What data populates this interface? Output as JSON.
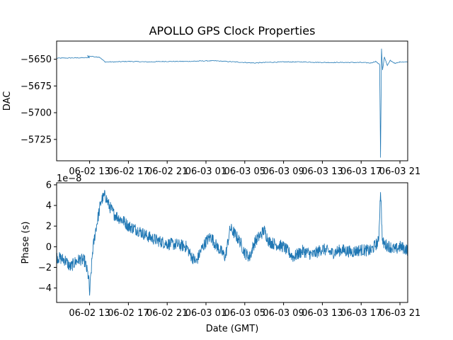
{
  "figure": {
    "title": "APOLLO GPS Clock Properties",
    "series_color": "#1f77b4",
    "axis_color": "#000000"
  },
  "chart_data": [
    {
      "type": "line",
      "title": "APOLLO GPS Clock Properties",
      "xlabel": "",
      "ylabel": "DAC",
      "x_ticks": [
        "06-02 13",
        "06-02 17",
        "06-02 21",
        "06-03 01",
        "06-03 05",
        "06-03 09",
        "06-03 13",
        "06-03 17",
        "06-03 21"
      ],
      "y_ticks": [
        -5650,
        -5675,
        -5700,
        -5725
      ],
      "ylim": [
        -5745,
        -5633
      ],
      "xlim_hours": [
        -3.4,
        32.8
      ],
      "grid": false,
      "series": [
        {
          "x_hours": [
            -3.4,
            0.0,
            -0.2,
            1.0,
            1.6,
            2.5,
            4.0,
            6.0,
            8.0,
            10.0,
            12.0,
            13.0,
            14.0,
            16.0,
            17.0,
            18.0,
            20.0,
            22.0,
            24.0,
            26.0,
            28.0,
            29.0,
            29.5,
            29.9,
            30.0,
            30.1,
            30.2,
            30.4,
            30.7,
            31.0,
            31.5,
            32.0,
            32.8
          ],
          "y": [
            -5649,
            -5648.5,
            -5647,
            -5648,
            -5652.5,
            -5652.5,
            -5652,
            -5652.5,
            -5652,
            -5652,
            -5651.5,
            -5651.5,
            -5652,
            -5653,
            -5653.5,
            -5653,
            -5652.5,
            -5652.5,
            -5653,
            -5653,
            -5653,
            -5653.5,
            -5652,
            -5655,
            -5742,
            -5640,
            -5660,
            -5648,
            -5656,
            -5651,
            -5654,
            -5652.5,
            -5652.5
          ]
        }
      ]
    },
    {
      "type": "line",
      "xlabel": "Date (GMT)",
      "ylabel": "Phase (s)",
      "offset_text": "1e−8",
      "x_ticks": [
        "06-02 13",
        "06-02 17",
        "06-02 21",
        "06-03 01",
        "06-03 05",
        "06-03 09",
        "06-03 13",
        "06-03 17",
        "06-03 21"
      ],
      "y_ticks": [
        6,
        4,
        2,
        0,
        -2,
        -4
      ],
      "y_scale": 1e-08,
      "ylim": [
        -5.4,
        6.2
      ],
      "xlim_hours": [
        -3.4,
        32.8
      ],
      "grid": false,
      "series": [
        {
          "x_hours": [
            -3.4,
            -2.5,
            -2.0,
            -1.5,
            -1.0,
            -0.5,
            -0.1,
            0.0,
            0.3,
            0.6,
            0.9,
            1.2,
            1.6,
            2.0,
            2.5,
            3.0,
            3.5,
            4.0,
            5.0,
            6.0,
            7.0,
            8.0,
            9.0,
            10.0,
            10.4,
            11.0,
            11.5,
            12.0,
            12.5,
            13.0,
            13.6,
            14.0,
            14.5,
            15.0,
            15.5,
            16.0,
            16.5,
            17.0,
            17.5,
            18.0,
            18.5,
            19.0,
            20.0,
            21.0,
            22.0,
            23.0,
            24.0,
            25.0,
            26.0,
            27.0,
            28.0,
            29.0,
            29.5,
            29.8,
            30.0,
            30.2,
            30.5,
            31.0,
            31.5,
            32.0,
            32.8
          ],
          "y": [
            -1.0,
            -1.3,
            -2.0,
            -1.5,
            -1.2,
            -1.4,
            -3.0,
            -4.6,
            -0.5,
            1.5,
            3.0,
            4.5,
            5.0,
            4.0,
            3.2,
            2.8,
            2.5,
            2.0,
            1.6,
            1.0,
            0.6,
            0.3,
            0.2,
            0.0,
            -0.8,
            -1.5,
            -0.3,
            0.5,
            1.0,
            0.2,
            -0.5,
            -1.0,
            1.8,
            1.2,
            0.5,
            -0.6,
            -1.0,
            0.4,
            1.0,
            1.6,
            0.5,
            0.3,
            0.0,
            -1.0,
            -0.4,
            -0.8,
            -0.2,
            -0.6,
            -0.3,
            -0.5,
            -0.3,
            -0.4,
            0.2,
            0.5,
            5.6,
            0.4,
            0.2,
            0.0,
            -0.3,
            0.0,
            -0.3
          ]
        }
      ]
    }
  ]
}
